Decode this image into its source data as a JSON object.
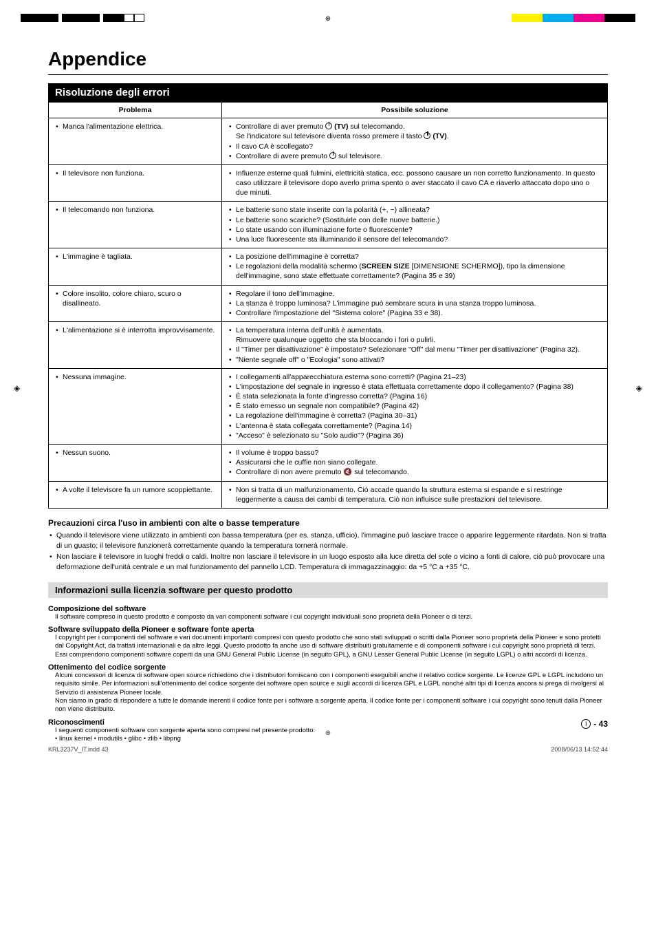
{
  "colors": {
    "band_bg": "#000000",
    "band_fg": "#ffffff",
    "license_band_bg": "#d9d9d9",
    "text": "#000000",
    "bar_black": "#000000",
    "bar_yellow": "#fff200",
    "bar_cyan": "#00aeef",
    "bar_magenta": "#ec008c",
    "bar_white": "#ffffff"
  },
  "crop_marks": {
    "reg_glyph": "⊕",
    "side_glyph": "◈"
  },
  "page": {
    "title": "Appendice",
    "section_title": "Risoluzione degli errori",
    "precautions_heading": "Precauzioni circa l'uso in ambienti con alte o basse temperature",
    "license_heading": "Informazioni sulla licenzia software per questo prodotto",
    "page_number": "43",
    "page_circle": "I",
    "footer_left": "KRL3237V_IT.indd   43",
    "footer_right": "2008/06/13   14:52:44"
  },
  "table": {
    "head_problem": "Problema",
    "head_solution": "Possibile soluzione",
    "rows": [
      {
        "problem": "Manca l'alimentazione elettrica.",
        "solutions": [
          "Controllare di aver premuto ⏻ (TV) sul telecomando.\nSe l'indicatore sul televisore diventa rosso premere il tasto ⏻ (TV).",
          "Il cavo CA è scollegato?",
          "Controllare di avere premuto ⏻ sul televisore."
        ]
      },
      {
        "problem": "Il televisore non funziona.",
        "solutions": [
          "Influenze esterne quali fulmini, elettricità statica, ecc. possono causare un non corretto funzionamento. In questo caso utilizzare il televisore dopo averlo prima spento o aver staccato il cavo CA e riaverlo attaccato dopo uno o due minuti."
        ]
      },
      {
        "problem": "Il telecomando non funziona.",
        "solutions": [
          "Le batterie sono state inserite con la polarità (+, −) allineata?",
          "Le batterie sono scariche? (Sostituirle con delle nuove batterie.)",
          "Lo state usando con illuminazione forte o fluorescente?",
          "Una luce fluorescente sta illuminando il sensore del telecomando?"
        ]
      },
      {
        "problem": "L'immagine è tagliata.",
        "solutions": [
          "La posizione dell'immagine è corretta?",
          "Le regolazioni della modalità schermo (SCREEN SIZE [DIMENSIONE SCHERMO]), tipo la dimensione dell'immagine, sono state effettuate correttamente? (Pagina 35 e 39)"
        ]
      },
      {
        "problem": "Colore insolito, colore chiaro, scuro o disallineato.",
        "solutions": [
          "Regolare il tono dell'immagine.",
          "La stanza è troppo luminosa? L'immagine può sembrare scura in una stanza troppo luminosa.",
          "Controllare l'impostazione del \"Sistema colore\" (Pagina 33 e 38)."
        ]
      },
      {
        "problem": "L'alimentazione si è interrotta improvvisamente.",
        "solutions": [
          "La temperatura interna dell'unità è aumentata.\nRimuovere qualunque oggetto che sta bloccando i fori o pulirli.",
          "Il \"Timer per disattivazione\" è impostato? Selezionare \"Off\" dal menu \"Timer per disattivazione\" (Pagina 32).",
          "\"Niente segnale off\" o \"Ecologia\" sono attivati?"
        ]
      },
      {
        "problem": "Nessuna immagine.",
        "solutions": [
          "I collegamenti all'apparecchiatura esterna sono corretti? (Pagina 21–23)",
          "L'impostazione del segnale in ingresso è stata effettuata correttamente dopo il collegamento? (Pagina 38)",
          "È stata selezionata la fonte d'ingresso corretta? (Pagina 16)",
          "È stato emesso un segnale non compatibile? (Pagina 42)",
          "La regolazione dell'immagine è corretta? (Pagina 30–31)",
          "L'antenna è stata collegata correttamente? (Pagina 14)",
          "\"Acceso\" è selezionato su \"Solo audio\"? (Pagina 36)"
        ]
      },
      {
        "problem": "Nessun suono.",
        "solutions": [
          "Il volume è troppo basso?",
          "Assicurarsi che le cuffie non siano collegate.",
          "Controllare di non avere premuto 🔇 sul telecomando."
        ]
      },
      {
        "problem": "A volte il televisore fa un rumore scoppiettante.",
        "solutions": [
          "Non si tratta di un malfunzionamento. Ciò accade quando la struttura esterna si espande e si restringe leggermente a causa dei cambi di temperatura. Ciò non influisce sulle prestazioni del televisore."
        ]
      }
    ]
  },
  "precautions": {
    "items": [
      "Quando il televisore viene utilizzato in ambienti con bassa temperatura (per es. stanza, ufficio), l'immagine può lasciare tracce o apparire leggermente ritardata. Non si tratta di un guasto; il televisore funzionerà correttamente quando la temperatura tornerà normale.",
      "Non lasciare il televisore in luoghi freddi o caldi. Inoltre non lasciare il televisore in un luogo esposto alla luce diretta del sole o vicino a fonti di calore, ciò può provocare una deformazione dell'unità centrale e un mal funzionamento del pannello LCD. Temperatura di immagazzinaggio: da +5 °C a +35 °C."
    ]
  },
  "license": {
    "sections": [
      {
        "heading": "Composizione del software",
        "body": "Il software compreso in questo prodotto è composto da vari componenti software i cui copyright individuali sono proprietà della Pioneer o di terzi."
      },
      {
        "heading": "Software sviluppato della Pioneer e software fonte aperta",
        "body": "I copyright per i componenti del software e vari documenti importanti compresi con questo prodotto che sono stati sviluppati o scritti dalla Pioneer sono proprietà della Pioneer e sono protetti dal Copyright Act, da trattati internazionali e da altre leggi. Questo prodotto fa anche uso di software distribuiti gratuitamente e di componenti software i cui copyright sono proprietà di terzi. Essi comprendono componenti software coperti da una GNU General Public License (in seguito GPL), a GNU Lesser General Public License (in seguito LGPL) o altri accordi di licenza."
      },
      {
        "heading": "Ottenimento del codice sorgente",
        "body": "Alcuni concessori di licenza di software open source richiedono che i distributori forniscano con i componenti eseguibili anche il relativo codice sorgente. Le licenze GPL e LGPL includono un requisito simile. Per informazioni sull'ottenimento del codice sorgente dei software open source e sugli accordi di licenza GPL e LGPL nonché altri tipi di licenza ancora si prega di rivolgersi al Servizio di assistenza Pioneer locale.\nNon siamo in grado di rispondere a tutte le domande inerenti il codice fonte per i software a sorgente aperta. Il codice fonte per i componenti software i cui copyright sono tenuti dalla Pioneer non viene distribuito."
      },
      {
        "heading": "Riconoscimenti",
        "body": "I seguenti componenti software con sorgente aperta sono compresi nel presente prodotto:\n• linux kernel • modutils • glibc • zlib • libpng"
      }
    ]
  }
}
